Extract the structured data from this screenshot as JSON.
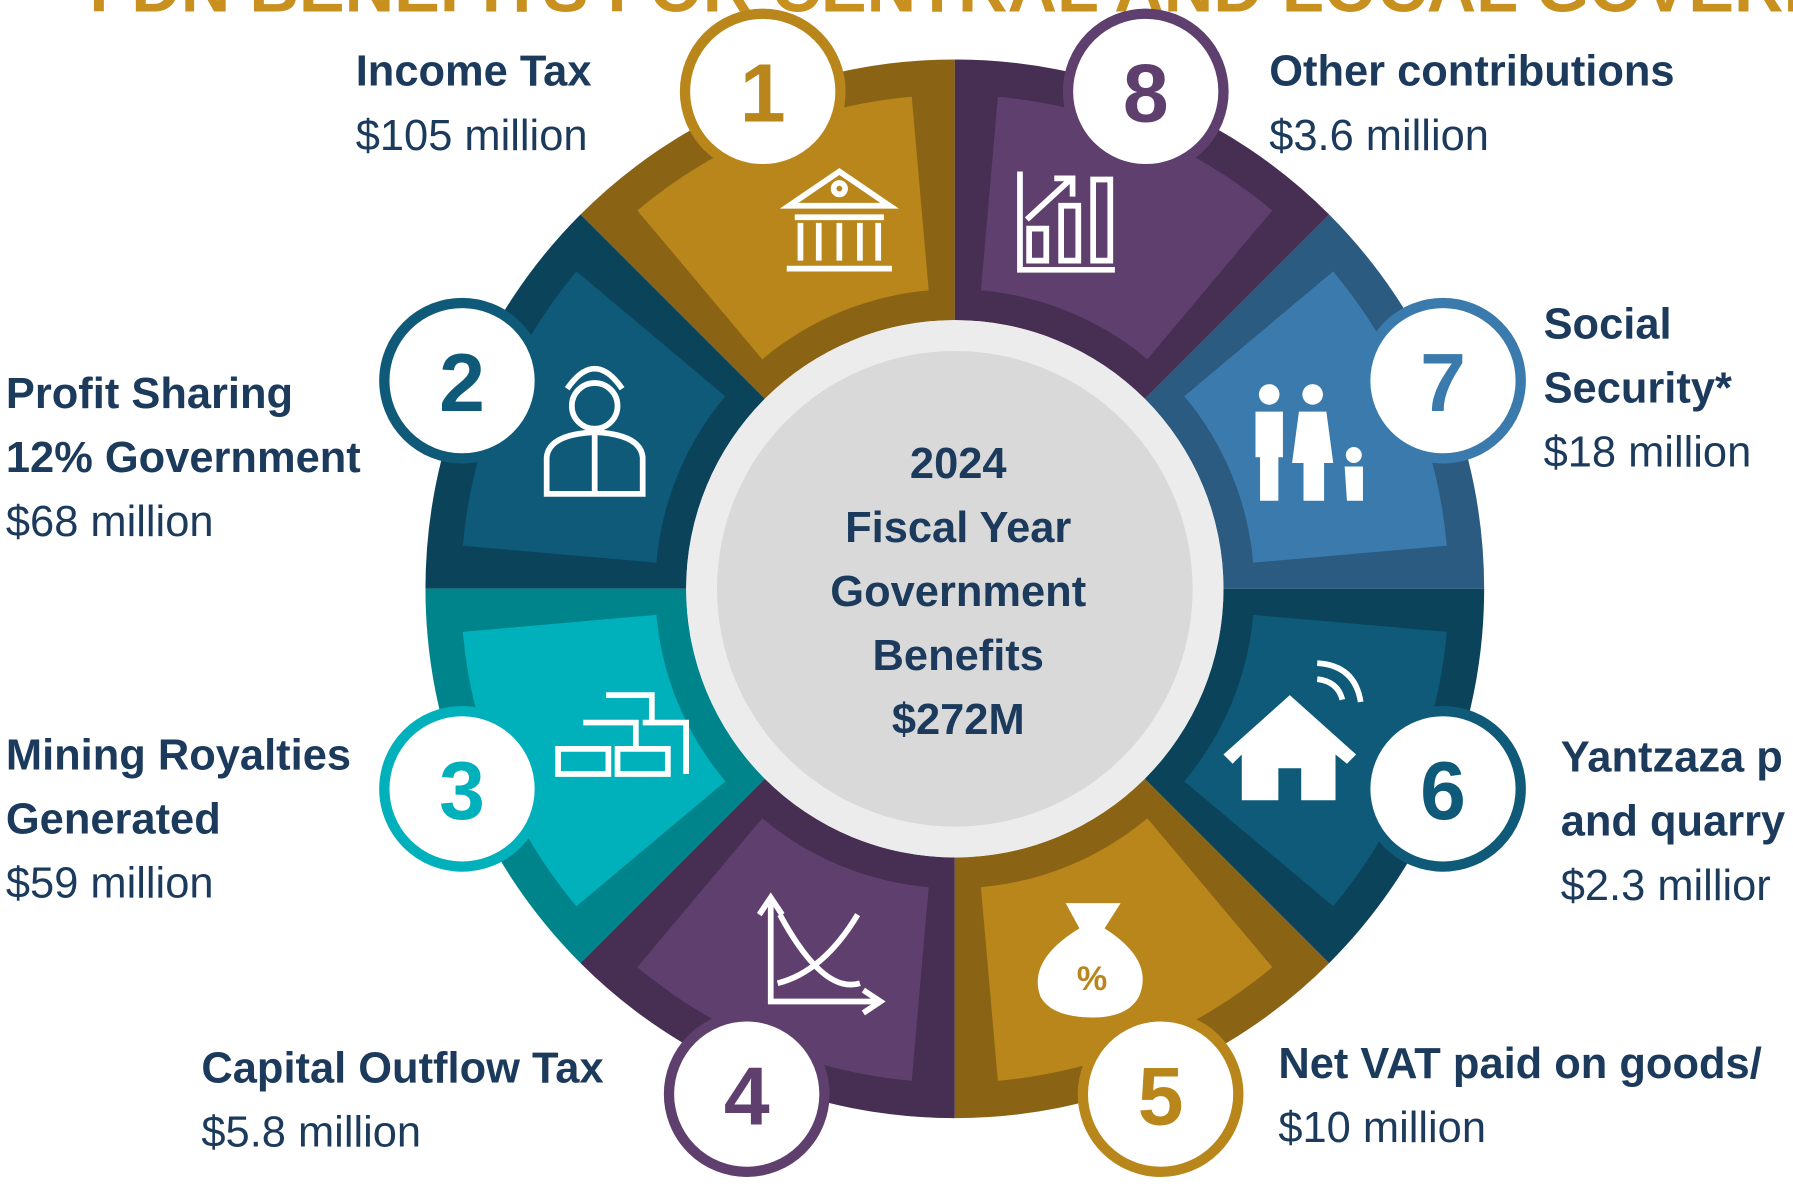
{
  "title": "FDN BENEFITS FOR CENTRAL AND LOCAL GOVERN",
  "center": [
    "2024",
    "Fiscal Year",
    "Government",
    "Benefits",
    "$272M"
  ],
  "items": [
    {
      "number": 1,
      "label": [
        "Income Tax"
      ],
      "amount": "$105 million",
      "color": "#b8861b"
    },
    {
      "number": 2,
      "label": [
        "Profit Sharing",
        "12% Government"
      ],
      "amount": "$68 million",
      "color": "#0e5a78"
    },
    {
      "number": 3,
      "label": [
        "Mining Royalties",
        "Generated"
      ],
      "amount": "$59 million",
      "color": "#00b0bb"
    },
    {
      "number": 4,
      "label": [
        "Capital Outflow Tax"
      ],
      "amount": "$5.8 million",
      "color": "#5e3f6e"
    },
    {
      "number": 5,
      "label": [
        "Net VAT paid on goods/"
      ],
      "amount": "$10 million",
      "color": "#b8861b"
    },
    {
      "number": 6,
      "label": [
        "Yantzaza p",
        "and quarry"
      ],
      "amount": "$2.3 millior",
      "color": "#0e5a78"
    },
    {
      "number": 7,
      "label": [
        "Social",
        "Security*"
      ],
      "amount": "$18 million",
      "color": "#3a7aac"
    },
    {
      "number": 8,
      "label": [
        "Other contributions"
      ],
      "amount": "$3.6 million",
      "color": "#5e3f6e"
    }
  ]
}
